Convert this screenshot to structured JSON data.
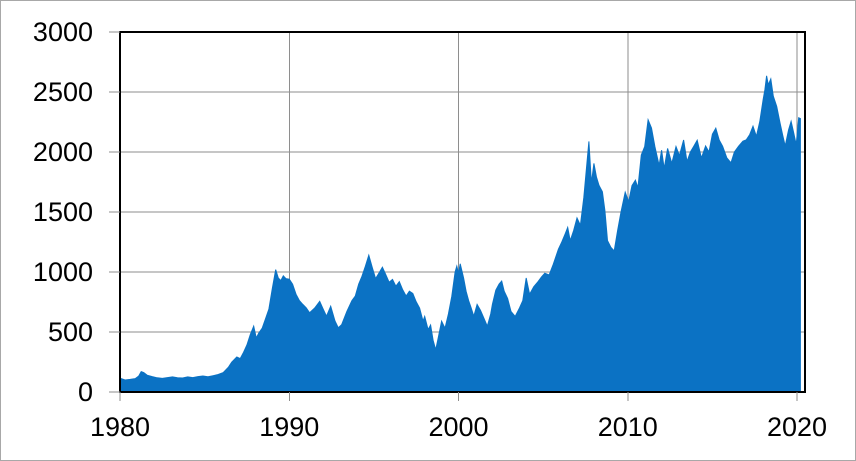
{
  "chart_data": {
    "type": "area",
    "title": "",
    "xlabel": "",
    "ylabel": "",
    "legend": "none",
    "grid": true,
    "x_range": [
      1980,
      2020.47
    ],
    "y_range": [
      0,
      3000
    ],
    "x_ticks": [
      1980,
      1990,
      2000,
      2010,
      2020
    ],
    "x_tick_labels": [
      "1980",
      "1990",
      "2000",
      "2010",
      "2020"
    ],
    "y_ticks": [
      0,
      500,
      1000,
      1500,
      2000,
      2500,
      3000
    ],
    "y_tick_labels": [
      "0",
      "500",
      "1000",
      "1500",
      "2000",
      "2500",
      "3000"
    ],
    "colors": {
      "series_fill": "#0b72c4",
      "gridline": "#8e8e8e",
      "tick_mark": "#8e8e8e",
      "plot_border": "#000000",
      "label_text": "#000000",
      "image_border": "#a8a8a8",
      "background": "#ffffff"
    },
    "series": [
      {
        "points": [
          [
            1980.0,
            115
          ],
          [
            1980.3,
            100
          ],
          [
            1980.6,
            105
          ],
          [
            1980.9,
            112
          ],
          [
            1981.1,
            132
          ],
          [
            1981.25,
            170
          ],
          [
            1981.4,
            162
          ],
          [
            1981.6,
            140
          ],
          [
            1981.9,
            128
          ],
          [
            1982.2,
            118
          ],
          [
            1982.5,
            113
          ],
          [
            1982.8,
            120
          ],
          [
            1983.1,
            126
          ],
          [
            1983.4,
            119
          ],
          [
            1983.7,
            117
          ],
          [
            1984.0,
            126
          ],
          [
            1984.3,
            120
          ],
          [
            1984.6,
            128
          ],
          [
            1984.9,
            133
          ],
          [
            1985.2,
            127
          ],
          [
            1985.5,
            136
          ],
          [
            1985.8,
            146
          ],
          [
            1986.1,
            162
          ],
          [
            1986.4,
            205
          ],
          [
            1986.6,
            248
          ],
          [
            1986.9,
            292
          ],
          [
            1987.1,
            278
          ],
          [
            1987.3,
            332
          ],
          [
            1987.5,
            392
          ],
          [
            1987.7,
            478
          ],
          [
            1987.9,
            548
          ],
          [
            1988.05,
            450
          ],
          [
            1988.2,
            492
          ],
          [
            1988.4,
            532
          ],
          [
            1988.6,
            612
          ],
          [
            1988.8,
            692
          ],
          [
            1989.0,
            862
          ],
          [
            1989.2,
            1020
          ],
          [
            1989.35,
            950
          ],
          [
            1989.5,
            928
          ],
          [
            1989.65,
            968
          ],
          [
            1989.8,
            945
          ],
          [
            1990.0,
            940
          ],
          [
            1990.2,
            898
          ],
          [
            1990.4,
            815
          ],
          [
            1990.6,
            762
          ],
          [
            1990.8,
            730
          ],
          [
            1991.0,
            702
          ],
          [
            1991.2,
            660
          ],
          [
            1991.5,
            700
          ],
          [
            1991.8,
            755
          ],
          [
            1992.0,
            692
          ],
          [
            1992.2,
            632
          ],
          [
            1992.45,
            715
          ],
          [
            1992.7,
            592
          ],
          [
            1992.9,
            535
          ],
          [
            1993.1,
            562
          ],
          [
            1993.4,
            670
          ],
          [
            1993.7,
            762
          ],
          [
            1993.9,
            800
          ],
          [
            1994.1,
            900
          ],
          [
            1994.3,
            965
          ],
          [
            1994.5,
            1048
          ],
          [
            1994.7,
            1140
          ],
          [
            1994.9,
            1040
          ],
          [
            1995.1,
            945
          ],
          [
            1995.3,
            992
          ],
          [
            1995.5,
            1040
          ],
          [
            1995.7,
            980
          ],
          [
            1995.9,
            915
          ],
          [
            1996.1,
            938
          ],
          [
            1996.3,
            882
          ],
          [
            1996.5,
            920
          ],
          [
            1996.7,
            852
          ],
          [
            1996.9,
            800
          ],
          [
            1997.1,
            840
          ],
          [
            1997.3,
            822
          ],
          [
            1997.5,
            752
          ],
          [
            1997.7,
            700
          ],
          [
            1997.9,
            592
          ],
          [
            1998.0,
            630
          ],
          [
            1998.2,
            520
          ],
          [
            1998.35,
            558
          ],
          [
            1998.5,
            432
          ],
          [
            1998.65,
            352
          ],
          [
            1998.8,
            450
          ],
          [
            1999.0,
            590
          ],
          [
            1999.2,
            532
          ],
          [
            1999.4,
            650
          ],
          [
            1999.6,
            798
          ],
          [
            1999.8,
            1000
          ],
          [
            1999.9,
            1048
          ],
          [
            2000.0,
            990
          ],
          [
            2000.1,
            1068
          ],
          [
            2000.3,
            950
          ],
          [
            2000.45,
            840
          ],
          [
            2000.6,
            760
          ],
          [
            2000.75,
            700
          ],
          [
            2000.9,
            632
          ],
          [
            2001.1,
            730
          ],
          [
            2001.3,
            680
          ],
          [
            2001.5,
            615
          ],
          [
            2001.7,
            548
          ],
          [
            2001.9,
            650
          ],
          [
            2002.0,
            730
          ],
          [
            2002.2,
            848
          ],
          [
            2002.4,
            900
          ],
          [
            2002.55,
            925
          ],
          [
            2002.7,
            840
          ],
          [
            2002.9,
            780
          ],
          [
            2003.1,
            672
          ],
          [
            2003.35,
            630
          ],
          [
            2003.6,
            700
          ],
          [
            2003.8,
            762
          ],
          [
            2004.0,
            950
          ],
          [
            2004.2,
            815
          ],
          [
            2004.45,
            878
          ],
          [
            2004.7,
            920
          ],
          [
            2004.9,
            958
          ],
          [
            2005.1,
            990
          ],
          [
            2005.35,
            975
          ],
          [
            2005.6,
            1065
          ],
          [
            2005.9,
            1190
          ],
          [
            2006.1,
            1250
          ],
          [
            2006.3,
            1318
          ],
          [
            2006.45,
            1372
          ],
          [
            2006.6,
            1262
          ],
          [
            2006.8,
            1345
          ],
          [
            2007.0,
            1450
          ],
          [
            2007.2,
            1390
          ],
          [
            2007.4,
            1620
          ],
          [
            2007.55,
            1850
          ],
          [
            2007.7,
            2088
          ],
          [
            2007.85,
            1740
          ],
          [
            2008.0,
            1905
          ],
          [
            2008.15,
            1790
          ],
          [
            2008.3,
            1722
          ],
          [
            2008.5,
            1668
          ],
          [
            2008.65,
            1512
          ],
          [
            2008.8,
            1262
          ],
          [
            2009.0,
            1205
          ],
          [
            2009.2,
            1175
          ],
          [
            2009.4,
            1345
          ],
          [
            2009.6,
            1500
          ],
          [
            2009.85,
            1665
          ],
          [
            2010.05,
            1585
          ],
          [
            2010.25,
            1720
          ],
          [
            2010.45,
            1765
          ],
          [
            2010.6,
            1702
          ],
          [
            2010.8,
            1975
          ],
          [
            2011.0,
            2045
          ],
          [
            2011.2,
            2268
          ],
          [
            2011.4,
            2200
          ],
          [
            2011.6,
            2045
          ],
          [
            2011.85,
            1888
          ],
          [
            2012.0,
            2015
          ],
          [
            2012.15,
            1862
          ],
          [
            2012.35,
            2030
          ],
          [
            2012.6,
            1905
          ],
          [
            2012.85,
            2045
          ],
          [
            2013.05,
            1970
          ],
          [
            2013.3,
            2100
          ],
          [
            2013.5,
            1920
          ],
          [
            2013.7,
            2000
          ],
          [
            2013.9,
            2048
          ],
          [
            2014.1,
            2098
          ],
          [
            2014.35,
            1950
          ],
          [
            2014.6,
            2050
          ],
          [
            2014.8,
            2000
          ],
          [
            2015.0,
            2148
          ],
          [
            2015.2,
            2198
          ],
          [
            2015.4,
            2100
          ],
          [
            2015.6,
            2048
          ],
          [
            2015.85,
            1952
          ],
          [
            2016.1,
            1910
          ],
          [
            2016.3,
            2000
          ],
          [
            2016.55,
            2048
          ],
          [
            2016.8,
            2090
          ],
          [
            2017.0,
            2102
          ],
          [
            2017.2,
            2145
          ],
          [
            2017.4,
            2215
          ],
          [
            2017.6,
            2130
          ],
          [
            2017.8,
            2255
          ],
          [
            2018.0,
            2440
          ],
          [
            2018.1,
            2520
          ],
          [
            2018.2,
            2635
          ],
          [
            2018.3,
            2560
          ],
          [
            2018.45,
            2608
          ],
          [
            2018.6,
            2465
          ],
          [
            2018.8,
            2380
          ],
          [
            2019.0,
            2240
          ],
          [
            2019.15,
            2140
          ],
          [
            2019.3,
            2050
          ],
          [
            2019.5,
            2185
          ],
          [
            2019.65,
            2255
          ],
          [
            2019.8,
            2160
          ],
          [
            2019.95,
            2062
          ],
          [
            2020.1,
            2285
          ],
          [
            2020.2,
            2278
          ]
        ]
      }
    ]
  }
}
